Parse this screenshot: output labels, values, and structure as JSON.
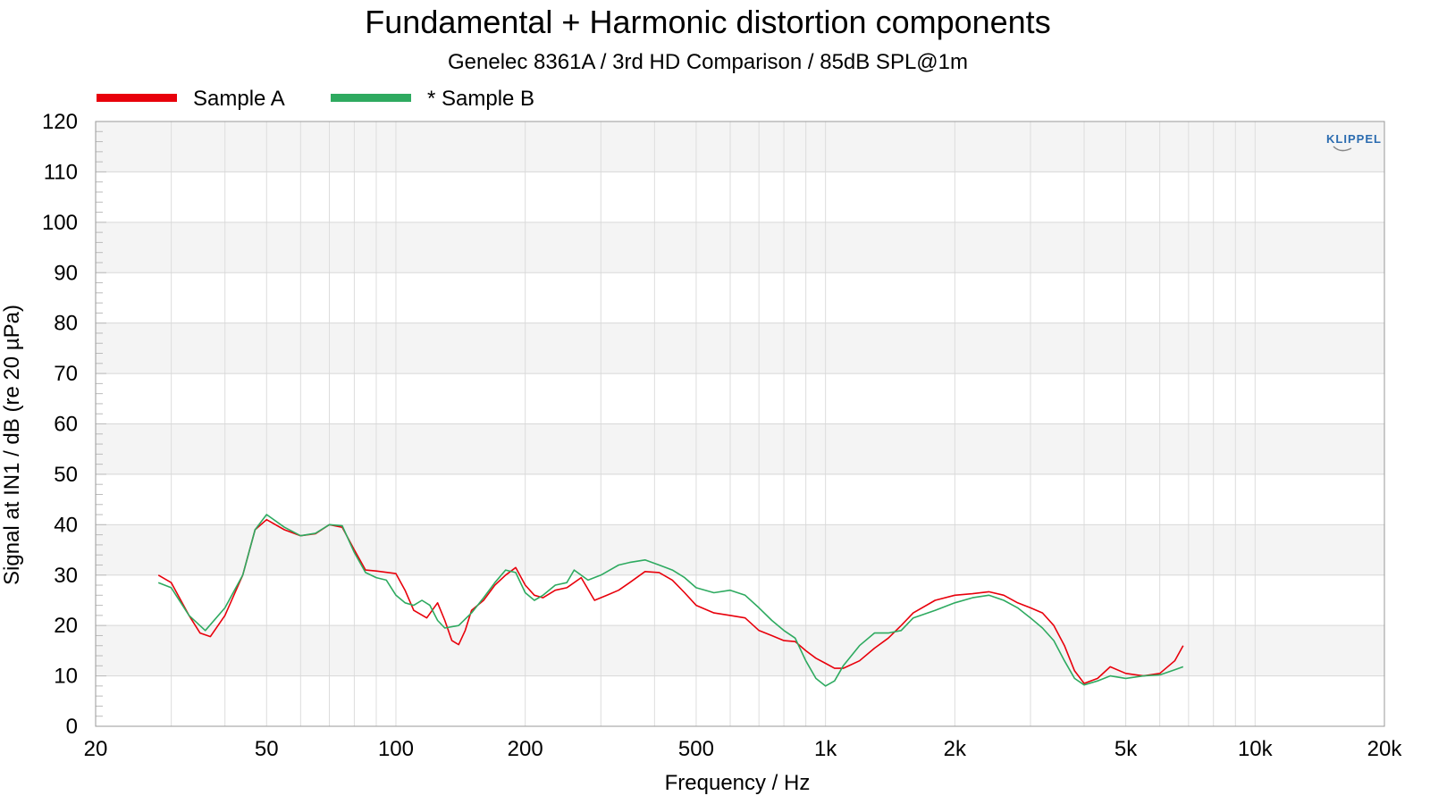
{
  "chart_data": {
    "type": "line",
    "title": "Fundamental + Harmonic distortion components",
    "subtitle": "Genelec 8361A / 3rd HD Comparison / 85dB SPL@1m",
    "xlabel": "Frequency / Hz",
    "ylabel": "Signal at IN1 / dB (re 20 µPa)",
    "x_scale": "log",
    "xlim": [
      20,
      20000
    ],
    "ylim": [
      0,
      120
    ],
    "x_ticks": [
      20,
      50,
      100,
      200,
      500,
      1000,
      2000,
      5000,
      10000,
      20000
    ],
    "x_tick_labels": [
      "20",
      "50",
      "100",
      "200",
      "500",
      "1k",
      "2k",
      "5k",
      "10k",
      "20k"
    ],
    "y_ticks": [
      0,
      10,
      20,
      30,
      40,
      50,
      60,
      70,
      80,
      90,
      100,
      110,
      120
    ],
    "y_tick_labels": [
      "0",
      "10",
      "20",
      "30",
      "40",
      "50",
      "60",
      "70",
      "80",
      "90",
      "100",
      "110",
      "120"
    ],
    "grid": true,
    "legend_position": "top-left",
    "logo_text": "KLIPPEL",
    "series": [
      {
        "name": "Sample A",
        "color": "#e8000b",
        "points": [
          [
            28,
            30
          ],
          [
            30,
            28.5
          ],
          [
            33,
            22
          ],
          [
            35,
            18.5
          ],
          [
            37,
            17.8
          ],
          [
            40,
            22
          ],
          [
            44,
            30
          ],
          [
            47,
            39
          ],
          [
            50,
            41
          ],
          [
            55,
            39
          ],
          [
            60,
            37.8
          ],
          [
            65,
            38.2
          ],
          [
            70,
            40
          ],
          [
            75,
            39.5
          ],
          [
            80,
            35
          ],
          [
            85,
            31
          ],
          [
            90,
            30.8
          ],
          [
            100,
            30.3
          ],
          [
            105,
            27
          ],
          [
            110,
            23
          ],
          [
            118,
            21.5
          ],
          [
            125,
            24.5
          ],
          [
            130,
            21
          ],
          [
            135,
            17
          ],
          [
            140,
            16.2
          ],
          [
            145,
            19
          ],
          [
            150,
            23
          ],
          [
            160,
            25
          ],
          [
            170,
            28
          ],
          [
            180,
            30
          ],
          [
            190,
            31.5
          ],
          [
            200,
            28
          ],
          [
            210,
            26
          ],
          [
            220,
            25.5
          ],
          [
            235,
            27
          ],
          [
            250,
            27.5
          ],
          [
            270,
            29.5
          ],
          [
            290,
            25
          ],
          [
            310,
            26
          ],
          [
            330,
            27
          ],
          [
            350,
            28.5
          ],
          [
            380,
            30.7
          ],
          [
            410,
            30.5
          ],
          [
            440,
            29
          ],
          [
            470,
            26.5
          ],
          [
            500,
            24
          ],
          [
            550,
            22.5
          ],
          [
            600,
            22
          ],
          [
            650,
            21.5
          ],
          [
            700,
            19
          ],
          [
            750,
            18
          ],
          [
            800,
            17
          ],
          [
            850,
            16.8
          ],
          [
            900,
            15
          ],
          [
            950,
            13.5
          ],
          [
            1000,
            12.5
          ],
          [
            1050,
            11.5
          ],
          [
            1100,
            11.5
          ],
          [
            1200,
            13
          ],
          [
            1300,
            15.5
          ],
          [
            1400,
            17.5
          ],
          [
            1500,
            20
          ],
          [
            1600,
            22.5
          ],
          [
            1800,
            25
          ],
          [
            2000,
            26
          ],
          [
            2200,
            26.3
          ],
          [
            2400,
            26.7
          ],
          [
            2600,
            26
          ],
          [
            2800,
            24.5
          ],
          [
            3000,
            23.5
          ],
          [
            3200,
            22.5
          ],
          [
            3400,
            20
          ],
          [
            3600,
            16
          ],
          [
            3800,
            11
          ],
          [
            4000,
            8.5
          ],
          [
            4300,
            9.5
          ],
          [
            4600,
            11.8
          ],
          [
            5000,
            10.5
          ],
          [
            5500,
            10
          ],
          [
            6000,
            10.5
          ],
          [
            6500,
            13
          ],
          [
            6800,
            16
          ]
        ]
      },
      {
        "name": "* Sample B",
        "color": "#2eaa60",
        "points": [
          [
            28,
            28.5
          ],
          [
            30,
            27.5
          ],
          [
            33,
            22
          ],
          [
            36,
            19
          ],
          [
            40,
            23.5
          ],
          [
            44,
            30
          ],
          [
            47,
            39
          ],
          [
            50,
            42
          ],
          [
            55,
            39.5
          ],
          [
            60,
            37.8
          ],
          [
            65,
            38.3
          ],
          [
            70,
            40
          ],
          [
            75,
            39.8
          ],
          [
            80,
            34.5
          ],
          [
            85,
            30.5
          ],
          [
            90,
            29.5
          ],
          [
            95,
            29
          ],
          [
            100,
            26
          ],
          [
            105,
            24.5
          ],
          [
            110,
            24
          ],
          [
            115,
            25
          ],
          [
            120,
            24
          ],
          [
            125,
            21
          ],
          [
            130,
            19.5
          ],
          [
            140,
            20
          ],
          [
            150,
            22.5
          ],
          [
            160,
            25.5
          ],
          [
            170,
            28.5
          ],
          [
            180,
            31
          ],
          [
            190,
            30.5
          ],
          [
            200,
            26.5
          ],
          [
            210,
            25
          ],
          [
            220,
            26
          ],
          [
            235,
            28
          ],
          [
            250,
            28.5
          ],
          [
            260,
            31
          ],
          [
            280,
            29
          ],
          [
            300,
            30
          ],
          [
            330,
            32
          ],
          [
            350,
            32.5
          ],
          [
            380,
            33
          ],
          [
            410,
            32
          ],
          [
            440,
            31
          ],
          [
            470,
            29.5
          ],
          [
            500,
            27.5
          ],
          [
            550,
            26.5
          ],
          [
            600,
            27
          ],
          [
            650,
            26
          ],
          [
            700,
            23.5
          ],
          [
            750,
            21
          ],
          [
            800,
            19
          ],
          [
            850,
            17.5
          ],
          [
            900,
            13
          ],
          [
            950,
            9.5
          ],
          [
            1000,
            8
          ],
          [
            1050,
            9
          ],
          [
            1100,
            12
          ],
          [
            1200,
            16
          ],
          [
            1300,
            18.5
          ],
          [
            1400,
            18.5
          ],
          [
            1500,
            19
          ],
          [
            1600,
            21.5
          ],
          [
            1800,
            23
          ],
          [
            2000,
            24.5
          ],
          [
            2200,
            25.5
          ],
          [
            2400,
            26
          ],
          [
            2600,
            25
          ],
          [
            2800,
            23.5
          ],
          [
            3000,
            21.5
          ],
          [
            3200,
            19.5
          ],
          [
            3400,
            17
          ],
          [
            3600,
            13
          ],
          [
            3800,
            9.5
          ],
          [
            4000,
            8.2
          ],
          [
            4300,
            9
          ],
          [
            4600,
            10
          ],
          [
            5000,
            9.5
          ],
          [
            5500,
            10
          ],
          [
            6000,
            10.2
          ],
          [
            6500,
            11.2
          ],
          [
            6800,
            11.8
          ]
        ]
      }
    ]
  }
}
